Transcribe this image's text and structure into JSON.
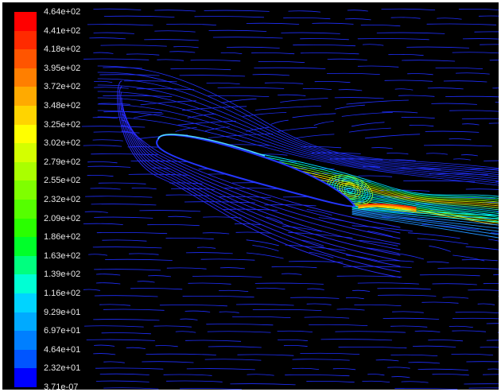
{
  "colorbar": {
    "labels": [
      "4.64e+02",
      "4.41e+02",
      "4.18e+02",
      "3.95e+02",
      "3.72e+02",
      "3.48e+02",
      "3.25e+02",
      "3.02e+02",
      "2.79e+02",
      "2.55e+02",
      "2.32e+02",
      "2.09e+02",
      "1.86e+02",
      "1.63e+02",
      "1.39e+02",
      "1.16e+02",
      "9.29e+01",
      "6.97e+01",
      "4.64e+01",
      "2.32e+01",
      "3.71e-07"
    ],
    "colors": [
      "#ff0000",
      "#ff2a00",
      "#ff5500",
      "#ff7f00",
      "#ffaa00",
      "#ffd400",
      "#ffff00",
      "#d4ff00",
      "#aaff00",
      "#7fff00",
      "#55ff00",
      "#2aff00",
      "#00ff2a",
      "#00ff7f",
      "#00ffd4",
      "#00d4ff",
      "#00aaff",
      "#007fff",
      "#0055ff",
      "#0000ff"
    ]
  },
  "colors": {
    "background": "#000000",
    "frame": "#ffffff",
    "airfoil": "#000000",
    "freestream_line": "#1f2fff"
  }
}
